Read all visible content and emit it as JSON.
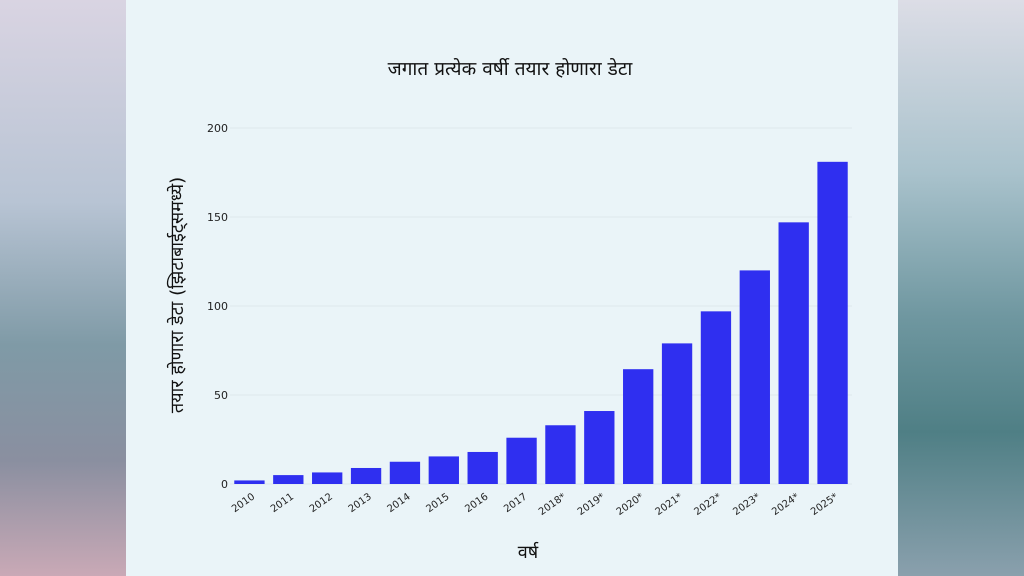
{
  "chart_data": {
    "type": "bar",
    "title": "जगात प्रत्येक वर्षी तयार होणारा डेटा",
    "xlabel": "वर्ष",
    "ylabel": "तयार होणारा डेटा (झिटाबाईट्समध्ये)",
    "categories": [
      "2010",
      "2011",
      "2012",
      "2013",
      "2014",
      "2015",
      "2016",
      "2017",
      "2018*",
      "2019*",
      "2020*",
      "2021*",
      "2022*",
      "2023*",
      "2024*",
      "2025*"
    ],
    "values": [
      2,
      5,
      6.5,
      9,
      12.5,
      15.5,
      18,
      26,
      33,
      41,
      64.5,
      79,
      97,
      120,
      147,
      181
    ],
    "ylim": [
      0,
      200
    ],
    "yticks": [
      "0",
      "50",
      "100",
      "150",
      "200"
    ],
    "grid": true,
    "colors": {
      "bar": "#2f2ff0",
      "card": "#eaf4f8",
      "grid": "#dde7ec",
      "text": "#111111"
    }
  }
}
